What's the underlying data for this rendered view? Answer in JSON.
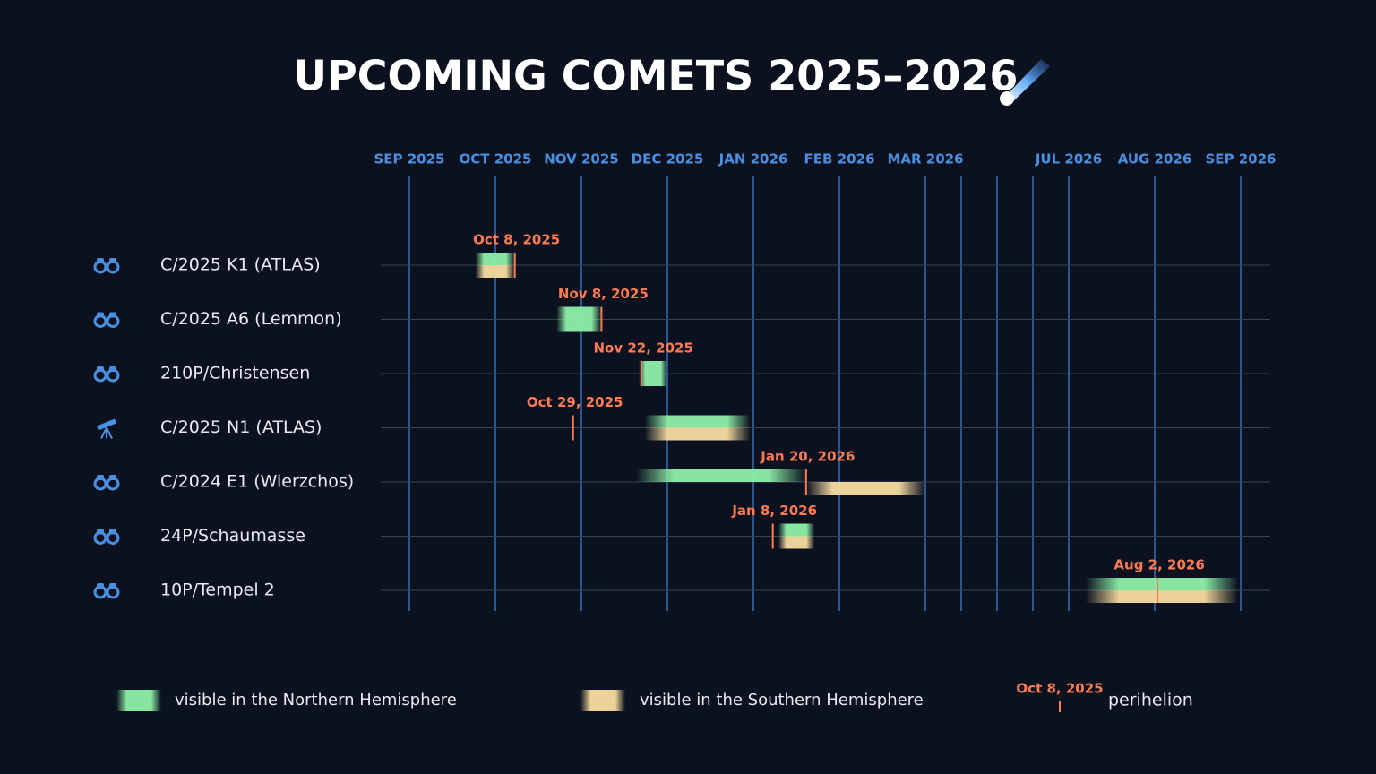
{
  "chart_data": {
    "type": "timeline",
    "title": "UPCOMING COMETS 2025–2026",
    "xticks": [
      {
        "value": "2025-09-01",
        "label": "SEP 2025"
      },
      {
        "value": "2025-10-01",
        "label": "OCT 2025"
      },
      {
        "value": "2025-11-01",
        "label": "NOV 2025"
      },
      {
        "value": "2025-12-01",
        "label": "DEC 2025"
      },
      {
        "value": "2026-01-01",
        "label": "JAN 2026"
      },
      {
        "value": "2026-02-01",
        "label": "FEB 2026"
      },
      {
        "value": "2026-03-01",
        "label": "MAR 2026"
      },
      {
        "value": "2026-04-01",
        "label": null
      },
      {
        "value": "2026-05-01",
        "label": null
      },
      {
        "value": "2026-06-01",
        "label": null
      },
      {
        "value": "2026-07-01",
        "label": "JUL 2026"
      },
      {
        "value": "2026-08-01",
        "label": "AUG 2026"
      },
      {
        "value": "2026-09-01",
        "label": "SEP 2026"
      }
    ],
    "colors": {
      "north": "#8ef0a8",
      "south": "#f7dba0",
      "perihelion": "#ff7b52",
      "grid": "#2f6fb8",
      "tick_label": "#4a90e2"
    },
    "comets": [
      {
        "name": "C/2025 K1 (ATLAS)",
        "instrument": "binoculars",
        "north": [
          "2025-09-24",
          "2025-10-08"
        ],
        "south": [
          "2025-09-24",
          "2025-10-08"
        ],
        "perihelion": {
          "value": "2025-10-08",
          "label": "Oct 8, 2025"
        }
      },
      {
        "name": "C/2025 A6 (Lemmon)",
        "instrument": "binoculars",
        "north": [
          "2025-10-23",
          "2025-11-08"
        ],
        "perihelion": {
          "value": "2025-11-08",
          "label": "Nov 8, 2025"
        }
      },
      {
        "name": "210P/Christensen",
        "instrument": "binoculars",
        "north": [
          "2025-11-21",
          "2025-12-01"
        ],
        "perihelion": {
          "value": "2025-11-22",
          "label": "Nov 22, 2025"
        }
      },
      {
        "name": "C/2025 N1 (ATLAS)",
        "instrument": "telescope",
        "north": [
          "2025-11-23",
          "2025-12-31"
        ],
        "south": [
          "2025-11-23",
          "2025-12-31"
        ],
        "perihelion": {
          "value": "2025-10-29",
          "label": "Oct 29, 2025"
        }
      },
      {
        "name": "C/2024 E1 (Wierzchos)",
        "instrument": "binoculars",
        "north": [
          "2025-11-20",
          "2026-01-20"
        ],
        "south": [
          "2026-01-20",
          "2026-03-01"
        ],
        "perihelion": {
          "value": "2026-01-20",
          "label": "Jan 20, 2026"
        }
      },
      {
        "name": "24P/Schaumasse",
        "instrument": "binoculars",
        "north": [
          "2026-01-10",
          "2026-01-23"
        ],
        "south": [
          "2026-01-10",
          "2026-01-23"
        ],
        "perihelion": {
          "value": "2026-01-08",
          "label": "Jan 8, 2026"
        }
      },
      {
        "name": "10P/Tempel 2",
        "instrument": "binoculars",
        "north": [
          "2026-07-07",
          "2026-08-31"
        ],
        "south": [
          "2026-07-07",
          "2026-08-31"
        ],
        "perihelion": {
          "value": "2026-08-02",
          "label": "Aug 2, 2026"
        }
      }
    ],
    "legend": {
      "north": "visible in the Northern Hemisphere",
      "south": "visible in the Southern Hemisphere",
      "perihelion_example": "Oct 8, 2025",
      "perihelion": "perihelion"
    }
  }
}
